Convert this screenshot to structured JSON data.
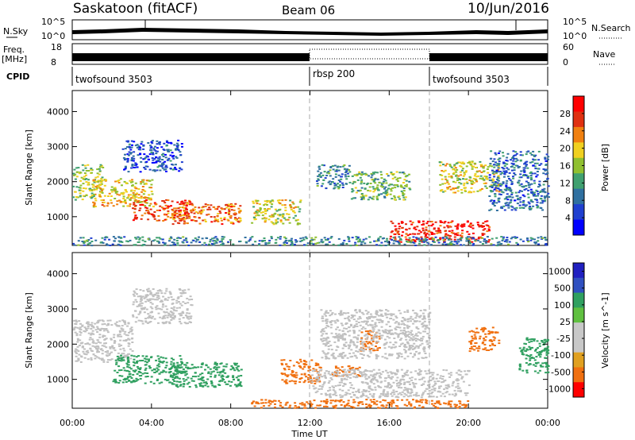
{
  "header": {
    "station": "Saskatoon (fitACF)",
    "beam": "Beam 06",
    "date": "10/Jun/2016"
  },
  "noise_panel": {
    "left_label": "N.Sky",
    "right_label": "N.Search",
    "left_ticks": [
      "10^5",
      "10^0"
    ],
    "right_ticks": [
      "10^5",
      "10^0"
    ]
  },
  "freq_panel": {
    "left_label_line1": "Freq.",
    "left_label_line2": "[MHz]",
    "right_label": "Nave",
    "left_ticks": [
      "18",
      "8"
    ],
    "right_ticks": [
      "60",
      "0"
    ]
  },
  "cpid": {
    "label": "CPID",
    "segments": [
      {
        "name": "twofsound 3503",
        "start_hour": 0
      },
      {
        "name": "rbsp 200",
        "start_hour": 12
      },
      {
        "name": "twofsound 3503",
        "start_hour": 18
      }
    ]
  },
  "colors": {
    "power_scale": [
      "#0000ff",
      "#2040d0",
      "#3070a0",
      "#40a070",
      "#90c030",
      "#f0d020",
      "#f08010",
      "#e03010",
      "#ff0000"
    ],
    "velocity_scale": [
      "#2020c0",
      "#3050c0",
      "#30a060",
      "#60c040",
      "#c8c8c8",
      "#c8c8c8",
      "#e0a020",
      "#f07010",
      "#ff0000"
    ],
    "ground_scatter": "#c0c0c0"
  },
  "chart_data": [
    {
      "type": "heatmap",
      "name": "power",
      "xlabel": "",
      "ylabel": "Slant Range [km]",
      "x_range_hours": [
        0,
        24
      ],
      "ylim": [
        180,
        4600
      ],
      "yticks": [
        "4000",
        "3000",
        "2000",
        "1000"
      ],
      "colorbar_label": "Power [dB]",
      "colorbar_ticks": [
        "28",
        "24",
        "20",
        "16",
        "12",
        "8",
        "4"
      ],
      "colorbar_range": [
        0,
        32
      ],
      "blobs": [
        {
          "t0": 0.0,
          "t1": 1.5,
          "r0": 1500,
          "r1": 2500,
          "level": 16
        },
        {
          "t0": 1.0,
          "t1": 4.0,
          "r0": 1300,
          "r1": 2100,
          "level": 20
        },
        {
          "t0": 3.0,
          "t1": 6.0,
          "r0": 900,
          "r1": 1500,
          "level": 26
        },
        {
          "t0": 5.0,
          "t1": 8.5,
          "r0": 800,
          "r1": 1400,
          "level": 24
        },
        {
          "t0": 2.5,
          "t1": 5.5,
          "r0": 2300,
          "r1": 3200,
          "level": 6
        },
        {
          "t0": 9.0,
          "t1": 11.5,
          "r0": 800,
          "r1": 1500,
          "level": 18
        },
        {
          "t0": 12.3,
          "t1": 14.0,
          "r0": 1800,
          "r1": 2500,
          "level": 10
        },
        {
          "t0": 14.0,
          "t1": 17.0,
          "r0": 1500,
          "r1": 2300,
          "level": 14
        },
        {
          "t0": 16.0,
          "t1": 21.0,
          "r0": 300,
          "r1": 900,
          "level": 28
        },
        {
          "t0": 18.5,
          "t1": 21.5,
          "r0": 1700,
          "r1": 2600,
          "level": 18
        },
        {
          "t0": 21.0,
          "t1": 24.0,
          "r0": 1200,
          "r1": 2900,
          "level": 8
        },
        {
          "t0": 0.0,
          "t1": 24.0,
          "r0": 200,
          "r1": 450,
          "level": 10
        }
      ]
    },
    {
      "type": "heatmap",
      "name": "velocity",
      "xlabel": "Time UT",
      "ylabel": "Slant Range [km]",
      "x_range_hours": [
        0,
        24
      ],
      "xticks": [
        "00:00",
        "04:00",
        "08:00",
        "12:00",
        "16:00",
        "20:00",
        "00:00"
      ],
      "ylim": [
        180,
        4600
      ],
      "yticks": [
        "4000",
        "3000",
        "2000",
        "1000"
      ],
      "colorbar_label": "Velocity [m s^-1]",
      "colorbar_ticks": [
        "1000",
        "500",
        "100",
        "25",
        "-25",
        "-100",
        "-500",
        "-1000"
      ],
      "blobs": [
        {
          "t0": 0.0,
          "t1": 3.0,
          "r0": 1500,
          "r1": 2700,
          "level": "gs"
        },
        {
          "t0": 2.0,
          "t1": 5.5,
          "r0": 900,
          "r1": 1700,
          "level": "+100"
        },
        {
          "t0": 5.0,
          "t1": 8.5,
          "r0": 800,
          "r1": 1500,
          "level": "+200"
        },
        {
          "t0": 3.0,
          "t1": 6.0,
          "r0": 2600,
          "r1": 3600,
          "level": "gs"
        },
        {
          "t0": 10.5,
          "t1": 12.5,
          "r0": 900,
          "r1": 1600,
          "level": "-300"
        },
        {
          "t0": 13.0,
          "t1": 14.5,
          "r0": 1100,
          "r1": 1400,
          "level": "-200"
        },
        {
          "t0": 14.5,
          "t1": 15.5,
          "r0": 1800,
          "r1": 2400,
          "level": "-400"
        },
        {
          "t0": 12.0,
          "t1": 20.0,
          "r0": 500,
          "r1": 1300,
          "level": "gs"
        },
        {
          "t0": 12.5,
          "t1": 18.0,
          "r0": 1600,
          "r1": 3000,
          "level": "gs"
        },
        {
          "t0": 20.0,
          "t1": 21.5,
          "r0": 1800,
          "r1": 2500,
          "level": "-300"
        },
        {
          "t0": 9.0,
          "t1": 20.0,
          "r0": 200,
          "r1": 450,
          "level": "-100"
        },
        {
          "t0": 22.5,
          "t1": 24.0,
          "r0": 1200,
          "r1": 2200,
          "level": "+200"
        }
      ]
    }
  ]
}
